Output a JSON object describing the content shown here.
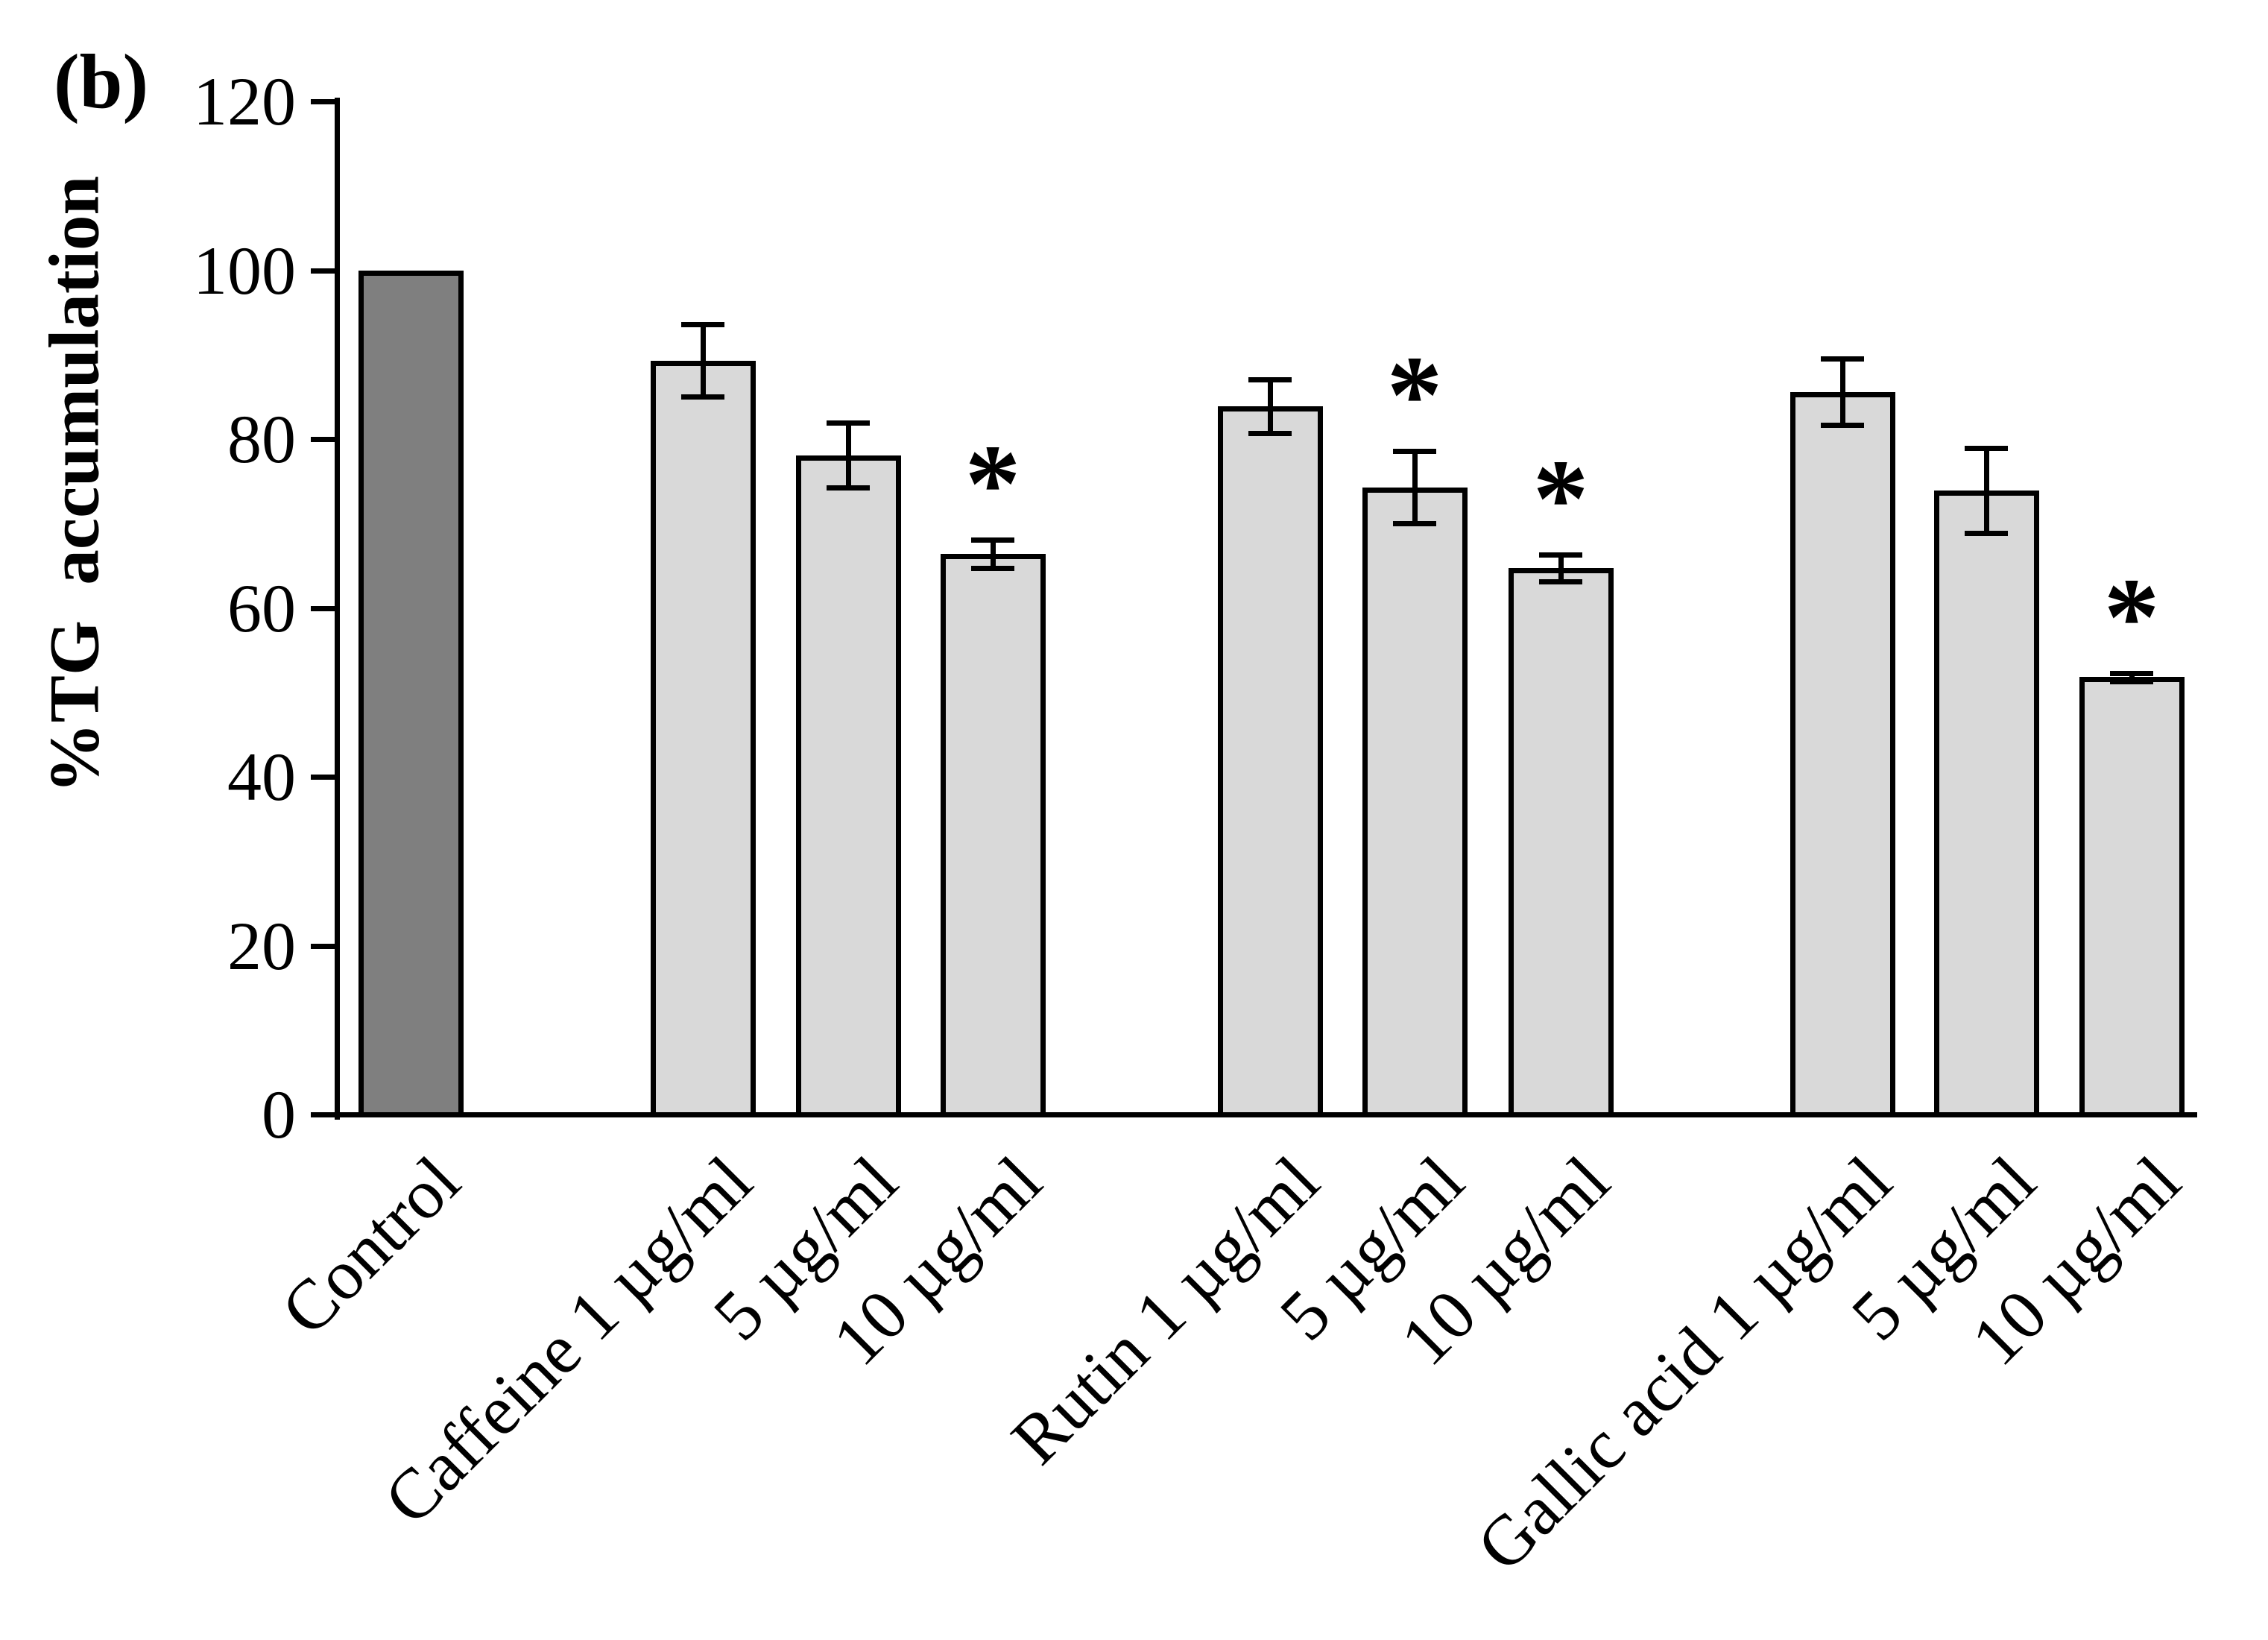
{
  "panel_label": "(b)",
  "colors": {
    "control_bar": "#7f7f7f",
    "treatment_bar": "#d9d9d9",
    "bar_border": "#000000",
    "axis": "#000000",
    "background": "#ffffff"
  },
  "significance_marker": "*",
  "chart_data": {
    "type": "bar",
    "title": "",
    "xlabel": "",
    "ylabel": "%TG  accumulation",
    "ylim": [
      0,
      120
    ],
    "yticks": [
      0,
      20,
      40,
      60,
      80,
      100,
      120
    ],
    "grid": false,
    "legend_position": "none",
    "categories": [
      "Control",
      "Caffeine 1 µg/ml",
      "5 µg/ml",
      "10 µg/ml",
      "Rutin 1 µg/ml",
      "5 µg/ml",
      "10 µg/ml",
      "Gallic acid 1 µg/ml",
      "5 µg/ml",
      "10 µg/ml"
    ],
    "groups": [
      {
        "name": "Control",
        "bar_indexes": [
          0
        ]
      },
      {
        "name": "Caffeine",
        "bar_indexes": [
          1,
          2,
          3
        ]
      },
      {
        "name": "Rutin",
        "bar_indexes": [
          4,
          5,
          6
        ]
      },
      {
        "name": "Gallic acid",
        "bar_indexes": [
          7,
          8,
          9
        ]
      }
    ],
    "series": [
      {
        "name": "%TG accumulation",
        "values": [
          100,
          89.3,
          78.1,
          66.4,
          83.9,
          74.3,
          64.7,
          85.6,
          73.9,
          51.8
        ],
        "errors": [
          0,
          4.3,
          3.8,
          1.7,
          3.2,
          4.3,
          1.6,
          3.9,
          5.0,
          0.5
        ],
        "significant": [
          false,
          false,
          false,
          true,
          false,
          true,
          true,
          false,
          false,
          true
        ]
      }
    ]
  }
}
